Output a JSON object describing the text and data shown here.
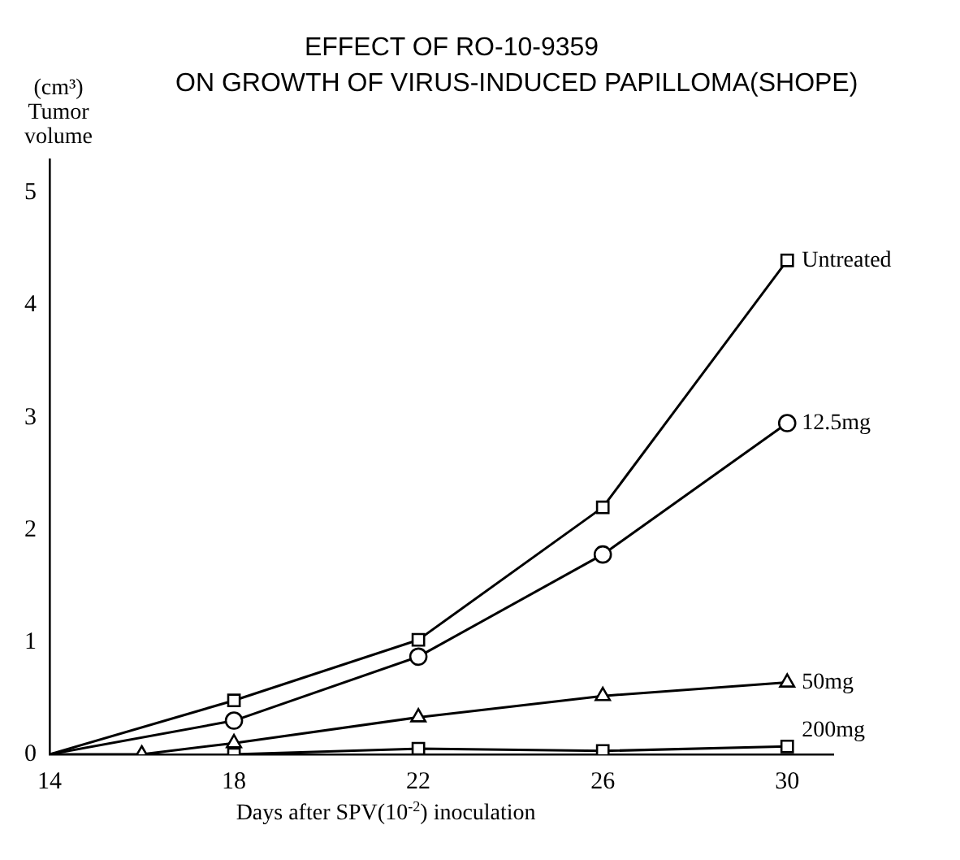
{
  "chart_data": {
    "type": "line",
    "title": "EFFECT OF RO-10-9359\nON GROWTH OF VIRUS-INDUCED PAPILLOMA(SHOPE)",
    "xlabel": "Days after SPV(10$^{-2}$) inoculation",
    "ylabel": "(cm³) Tumor volume",
    "xlim": [
      14,
      31
    ],
    "xticks": [
      14,
      18,
      22,
      26,
      30
    ],
    "ylim": [
      0,
      5.3
    ],
    "yticks": [
      0,
      1,
      2,
      3,
      4,
      5
    ],
    "grid": false,
    "legend": false,
    "line_style": "solid",
    "series": [
      {
        "name": "Untreated",
        "color": "#000000",
        "marker": "square",
        "x": [
          14,
          18,
          22,
          26,
          30
        ],
        "values": [
          0,
          0.48,
          1.02,
          2.2,
          4.4
        ]
      },
      {
        "name": "12.5mg",
        "color": "#000000",
        "marker": "circle",
        "x": [
          14,
          18,
          22,
          26,
          30
        ],
        "values": [
          0,
          0.3,
          0.87,
          1.78,
          2.95
        ]
      },
      {
        "name": "50mg",
        "color": "#000000",
        "marker": "triangle",
        "x": [
          14,
          16,
          18,
          22,
          26,
          30
        ],
        "values": [
          0,
          0,
          0.1,
          0.33,
          0.52,
          0.64
        ]
      },
      {
        "name": "200mg",
        "color": "#000000",
        "marker": "square",
        "x": [
          18,
          22,
          26,
          30
        ],
        "values": [
          0,
          0.05,
          0.03,
          0.07
        ]
      }
    ]
  }
}
